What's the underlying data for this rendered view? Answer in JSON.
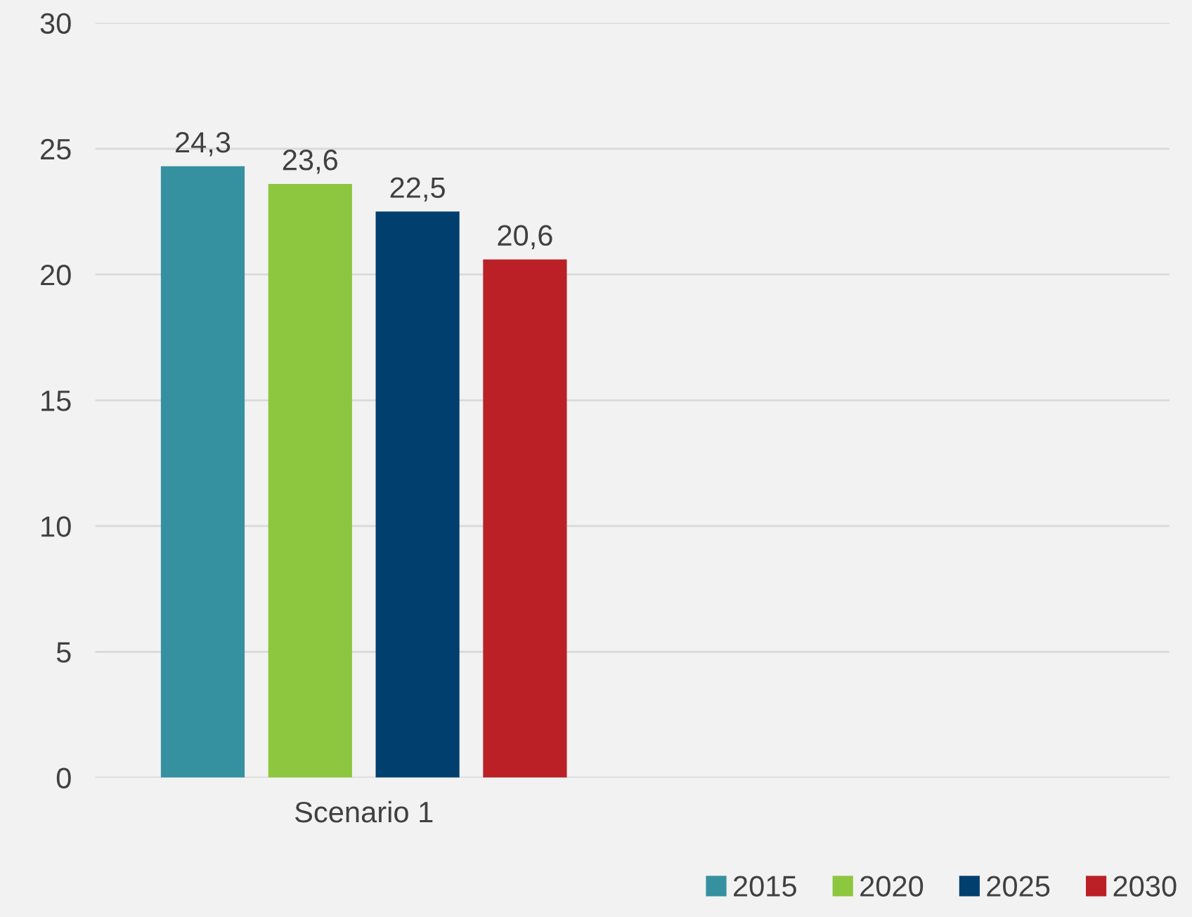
{
  "chart_data": {
    "type": "bar",
    "categories": [
      "Scenario 1",
      null
    ],
    "series": [
      {
        "name": "2015",
        "color": "#3591a0",
        "values": [
          24.3,
          null
        ],
        "value_labels": [
          "24,3",
          null
        ]
      },
      {
        "name": "2020",
        "color": "#8dc63f",
        "values": [
          23.6,
          null
        ],
        "value_labels": [
          "23,6",
          null
        ]
      },
      {
        "name": "2025",
        "color": "#003f6e",
        "values": [
          22.5,
          null
        ],
        "value_labels": [
          "22,5",
          null
        ]
      },
      {
        "name": "2030",
        "color": "#bb2026",
        "values": [
          20.6,
          null
        ],
        "value_labels": [
          "20,6",
          null
        ]
      }
    ],
    "ylim": [
      0,
      30
    ],
    "yticks": [
      0,
      5,
      10,
      15,
      20,
      25,
      30
    ],
    "grid": "y",
    "legend": "bottom right"
  }
}
